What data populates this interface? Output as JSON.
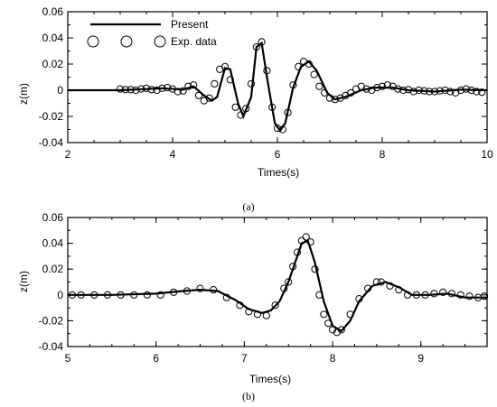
{
  "chart_data": [
    {
      "type": "line",
      "caption": "(a)",
      "xlabel": "Times(s)",
      "ylabel": "z(m)",
      "xlim": [
        2,
        10
      ],
      "ylim": [
        -0.04,
        0.06
      ],
      "xticks": [
        "2",
        "4",
        "6",
        "8",
        "10"
      ],
      "yticks": [
        "-0.04",
        "-0.02",
        "0",
        "0.02",
        "0.04",
        "0.06"
      ],
      "legend": {
        "position": "top-left",
        "entries": [
          "Present",
          "Exp. data"
        ]
      },
      "series": [
        {
          "name": "Present",
          "style": "line",
          "x": [
            2,
            3,
            3.8,
            4.2,
            4.4,
            4.6,
            4.75,
            4.85,
            5.0,
            5.1,
            5.25,
            5.35,
            5.5,
            5.6,
            5.7,
            5.8,
            5.95,
            6.05,
            6.15,
            6.3,
            6.45,
            6.6,
            6.75,
            6.95,
            7.1,
            7.3,
            7.6,
            7.85,
            8.2,
            8.5,
            9.0,
            9.5,
            10
          ],
          "y": [
            0,
            0,
            0.0015,
            0.0005,
            0.003,
            -0.004,
            -0.008,
            -0.005,
            0.017,
            0.016,
            -0.01,
            -0.02,
            -0.005,
            0.033,
            0.036,
            0.01,
            -0.025,
            -0.031,
            -0.025,
            0.002,
            0.018,
            0.022,
            0.015,
            -0.002,
            -0.007,
            -0.005,
            0.0,
            0.002,
            0.002,
            0.0,
            -0.001,
            0.0005,
            0.0
          ]
        },
        {
          "name": "Exp. data",
          "style": "marker",
          "x": [
            3.0,
            3.1,
            3.2,
            3.3,
            3.4,
            3.5,
            3.6,
            3.7,
            3.8,
            3.9,
            4.0,
            4.1,
            4.2,
            4.3,
            4.4,
            4.5,
            4.6,
            4.7,
            4.8,
            4.9,
            5.0,
            5.1,
            5.2,
            5.3,
            5.4,
            5.5,
            5.6,
            5.7,
            5.8,
            5.9,
            6.0,
            6.1,
            6.2,
            6.3,
            6.4,
            6.5,
            6.6,
            6.7,
            6.8,
            6.9,
            7.0,
            7.1,
            7.2,
            7.3,
            7.4,
            7.5,
            7.6,
            7.7,
            7.8,
            7.9,
            8.0,
            8.1,
            8.2,
            8.3,
            8.4,
            8.5,
            8.6,
            8.7,
            8.8,
            8.9,
            9.0,
            9.1,
            9.2,
            9.3,
            9.4,
            9.5,
            9.6,
            9.7,
            9.8,
            9.9
          ],
          "y": [
            0.001,
            0.0005,
            0.0005,
            0.0,
            0.001,
            0.0015,
            0.0005,
            0.0,
            0.0015,
            0.002,
            0.001,
            -0.001,
            -0.0005,
            0.003,
            0.004,
            -0.004,
            -0.008,
            -0.006,
            0.005,
            0.016,
            0.018,
            0.008,
            -0.013,
            -0.019,
            -0.014,
            0.005,
            0.033,
            0.037,
            0.015,
            -0.013,
            -0.029,
            -0.03,
            -0.017,
            0.004,
            0.018,
            0.022,
            0.02,
            0.012,
            0.003,
            -0.002,
            -0.006,
            -0.007,
            -0.006,
            -0.004,
            -0.002,
            0.001,
            0.003,
            0.001,
            0.0,
            0.002,
            0.003,
            0.004,
            0.003,
            0.001,
            0.0,
            0.0005,
            -0.001,
            0.0,
            -0.0005,
            -0.001,
            -0.001,
            -0.0005,
            0.0,
            -0.001,
            -0.002,
            0.0,
            0.001,
            0.0,
            -0.001,
            -0.0015
          ]
        }
      ]
    },
    {
      "type": "line",
      "caption": "(b)",
      "xlabel": "Times(s)",
      "ylabel": "z(m)",
      "xlim": [
        5,
        9.75
      ],
      "ylim": [
        -0.04,
        0.06
      ],
      "xticks": [
        "5",
        "6",
        "7",
        "8",
        "9"
      ],
      "yticks": [
        "-0.04",
        "-0.02",
        "0",
        "0.02",
        "0.04",
        "0.06"
      ],
      "series": [
        {
          "name": "Present",
          "style": "line",
          "x": [
            5,
            5.5,
            6.0,
            6.3,
            6.5,
            6.7,
            6.9,
            7.05,
            7.2,
            7.3,
            7.4,
            7.5,
            7.6,
            7.65,
            7.72,
            7.8,
            7.9,
            8.0,
            8.1,
            8.2,
            8.3,
            8.45,
            8.6,
            8.75,
            8.9,
            9.1,
            9.3,
            9.5,
            9.75
          ],
          "y": [
            0,
            0,
            0.001,
            0.003,
            0.004,
            0.003,
            -0.004,
            -0.011,
            -0.014,
            -0.012,
            -0.005,
            0.01,
            0.03,
            0.04,
            0.042,
            0.025,
            -0.005,
            -0.024,
            -0.028,
            -0.02,
            -0.005,
            0.007,
            0.01,
            0.006,
            0.0,
            0.0,
            0.001,
            -0.002,
            -0.002
          ]
        },
        {
          "name": "Exp. data",
          "style": "marker",
          "x": [
            5.05,
            5.15,
            5.3,
            5.45,
            5.6,
            5.75,
            5.9,
            6.05,
            6.2,
            6.35,
            6.5,
            6.65,
            6.8,
            6.95,
            7.05,
            7.15,
            7.25,
            7.35,
            7.45,
            7.5,
            7.55,
            7.6,
            7.65,
            7.7,
            7.75,
            7.8,
            7.85,
            7.9,
            7.95,
            8.0,
            8.05,
            8.1,
            8.2,
            8.3,
            8.4,
            8.5,
            8.55,
            8.65,
            8.75,
            8.85,
            8.95,
            9.05,
            9.15,
            9.25,
            9.35,
            9.45,
            9.55,
            9.65,
            9.72
          ],
          "y": [
            0.0,
            0.0,
            0.0,
            0.0,
            0.0,
            0.0,
            0.0,
            0.0,
            0.002,
            0.003,
            0.005,
            0.004,
            -0.002,
            -0.008,
            -0.013,
            -0.015,
            -0.016,
            -0.008,
            0.005,
            0.01,
            0.022,
            0.033,
            0.042,
            0.045,
            0.041,
            0.02,
            0.0,
            -0.015,
            -0.022,
            -0.027,
            -0.029,
            -0.027,
            -0.015,
            -0.003,
            0.005,
            0.01,
            0.01,
            0.007,
            0.004,
            0.0,
            0.0,
            0.0,
            0.001,
            0.002,
            0.001,
            0.0,
            -0.001,
            -0.002,
            -0.001
          ]
        }
      ]
    }
  ]
}
